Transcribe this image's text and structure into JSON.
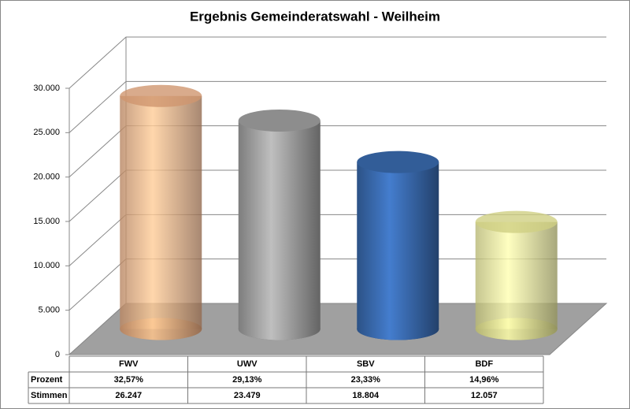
{
  "chart_data": {
    "type": "bar",
    "title": "Ergebnis Gemeinderatswahl - Weilheim",
    "categories": [
      "FWV",
      "UWV",
      "SBV",
      "BDF"
    ],
    "colors": [
      "#f4b183",
      "#a6a6a6",
      "#3b6db3",
      "#f4f49a"
    ],
    "series": [
      {
        "name": "Stimmen",
        "values": [
          26247,
          23479,
          18804,
          12057
        ],
        "value_labels": [
          "26.247",
          "23.479",
          "18.804",
          "12.057"
        ]
      }
    ],
    "percent_row": {
      "name": "Prozent",
      "values": [
        32.57,
        29.13,
        23.33,
        14.96
      ],
      "value_labels": [
        "32,57%",
        "29,13%",
        "23,33%",
        "14,96%"
      ]
    },
    "ylim": [
      0,
      30000
    ],
    "yticks": [
      0,
      {
        "value": 5000,
        "label": "5.000"
      },
      {
        "value": 10000,
        "label": "10.000"
      },
      {
        "value": 15000,
        "label": "15.000"
      },
      {
        "value": 20000,
        "label": "20.000"
      },
      {
        "value": 25000,
        "label": "25.000"
      },
      {
        "value": 30000,
        "label": "30.000"
      }
    ],
    "grid": true
  }
}
